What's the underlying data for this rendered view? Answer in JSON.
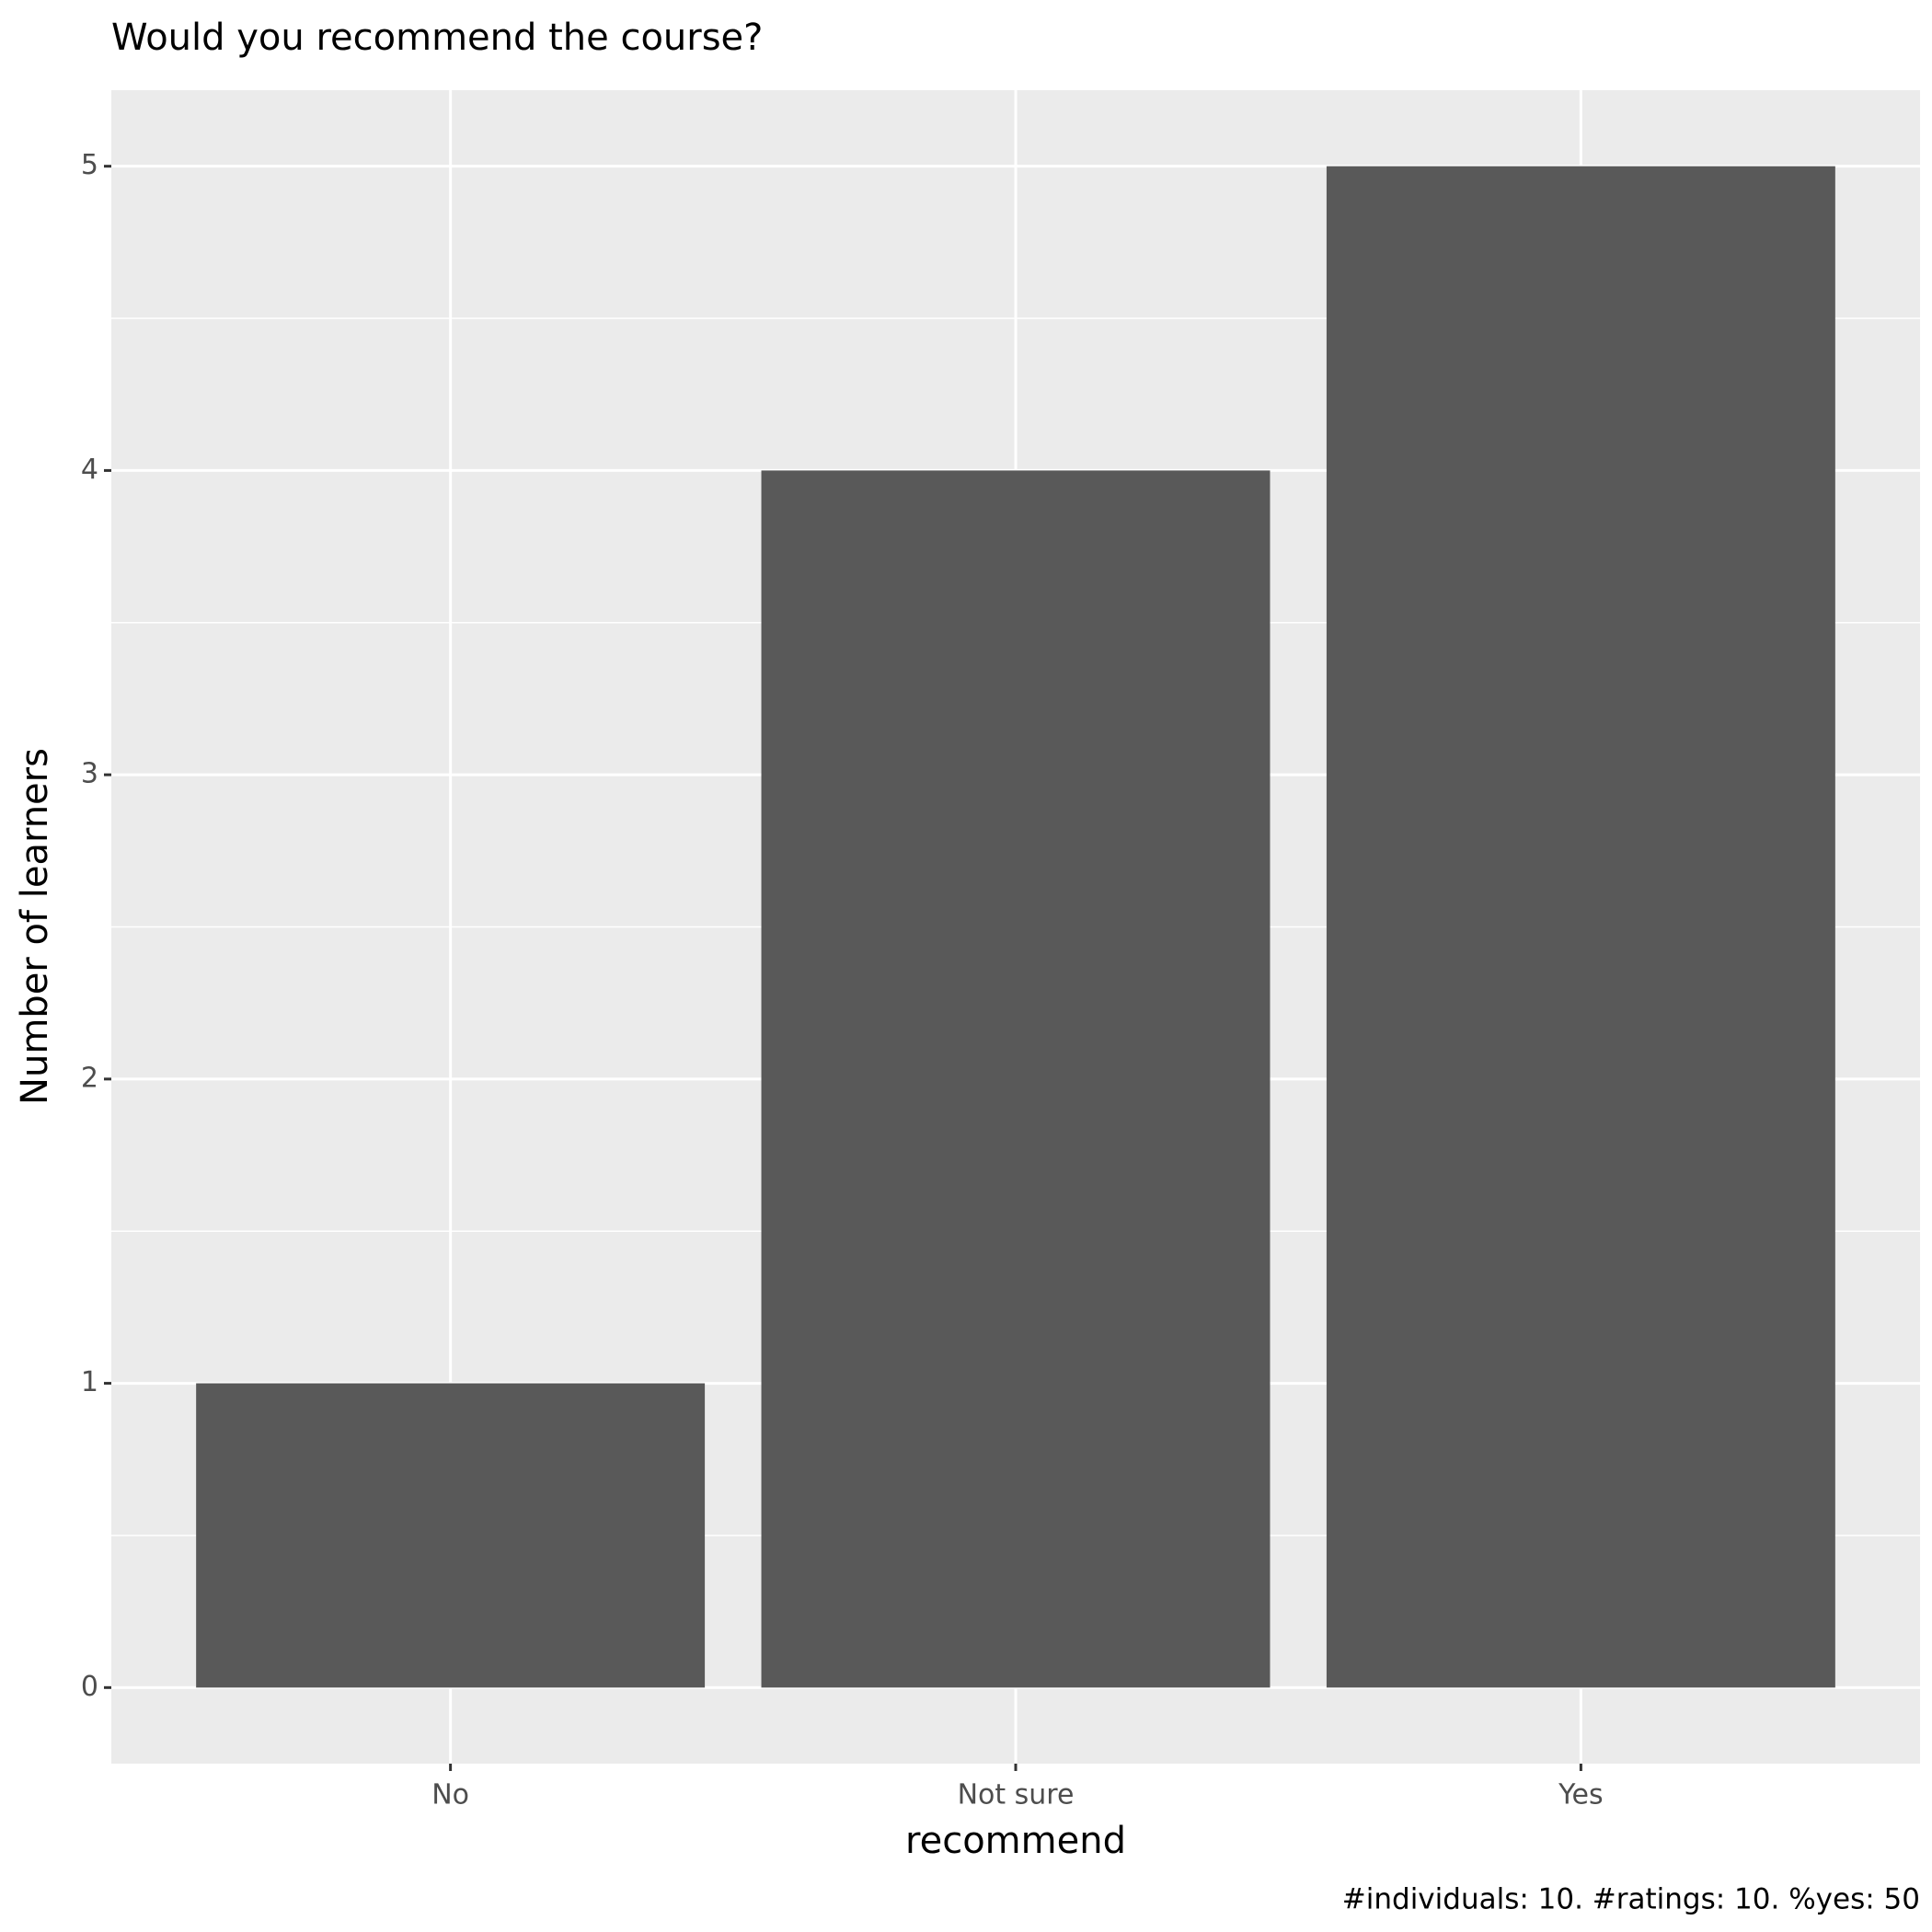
{
  "chart_data": {
    "type": "bar",
    "title": "Would you recommend the course?",
    "x_label": "recommend",
    "y_label": "Number of learners",
    "caption": "#individuals: 10. #ratings: 10. %yes: 50",
    "categories": [
      "No",
      "Not sure",
      "Yes"
    ],
    "values": [
      1,
      4,
      5
    ],
    "color": "#595959",
    "ylim": [
      -0.25,
      5.25
    ],
    "yticks": [
      0,
      1,
      2,
      3,
      4,
      5
    ],
    "grid": true
  }
}
